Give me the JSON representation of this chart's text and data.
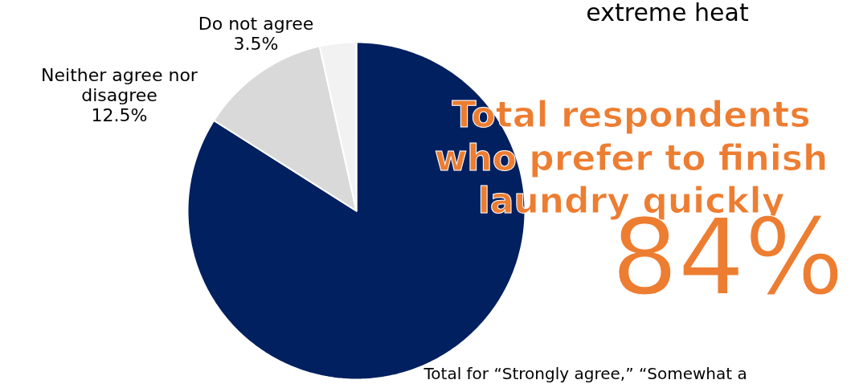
{
  "chart_data": {
    "type": "pie",
    "title": "extreme heat",
    "categories": [
      null,
      "Neither agree nor\ndisagree",
      "Do not agree"
    ],
    "values": [
      84,
      12.5,
      3.5
    ],
    "colors": [
      "#002060",
      "#d9d9d9",
      "#f2f2f2"
    ],
    "value_labels": [
      null,
      "12.5%",
      "3.5%"
    ],
    "annotations": [
      "Total respondents\nwho prefer to finish\nlaundry quickly",
      "84%",
      "Total for “Strongly agree,” “Somewhat a"
    ]
  }
}
